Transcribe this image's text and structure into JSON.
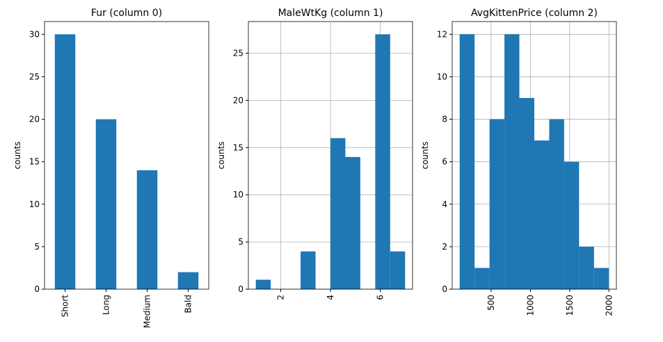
{
  "chart_data": [
    {
      "type": "bar",
      "title": "Fur (column 0)",
      "ylabel": "counts",
      "categories": [
        "Short",
        "Long",
        "Medium",
        "Bald"
      ],
      "values": [
        30,
        20,
        14,
        2
      ],
      "color": "#1f77b4",
      "ylim": [
        0,
        31.5
      ],
      "yticks": [
        0,
        5,
        10,
        15,
        20,
        25,
        30
      ],
      "grid": false
    },
    {
      "type": "histogram",
      "title": "MaleWtKg (column 1)",
      "ylabel": "counts",
      "bins": [
        1.0,
        1.6,
        2.2,
        2.8,
        3.4,
        4.0,
        4.6,
        5.2,
        5.8,
        6.4,
        7.0
      ],
      "counts": [
        1,
        0,
        0,
        4,
        0,
        16,
        14,
        0,
        27,
        4
      ],
      "color": "#1f77b4",
      "xlim": [
        0.7,
        7.3
      ],
      "xticks": [
        2,
        4,
        6
      ],
      "ylim": [
        0,
        28.35
      ],
      "yticks": [
        0,
        5,
        10,
        15,
        20,
        25
      ],
      "grid": true
    },
    {
      "type": "histogram",
      "title": "AvgKittenPrice (column 2)",
      "ylabel": "counts",
      "bins": [
        100,
        290,
        480,
        670,
        860,
        1050,
        1240,
        1430,
        1620,
        1810,
        2000
      ],
      "counts": [
        12,
        1,
        8,
        12,
        9,
        7,
        8,
        6,
        2,
        1
      ],
      "color": "#1f77b4",
      "xlim": [
        5,
        2095
      ],
      "xticks": [
        500,
        1000,
        1500,
        2000
      ],
      "ylim": [
        0,
        12.6
      ],
      "yticks": [
        0,
        2,
        4,
        6,
        8,
        10,
        12
      ],
      "grid": true
    }
  ]
}
